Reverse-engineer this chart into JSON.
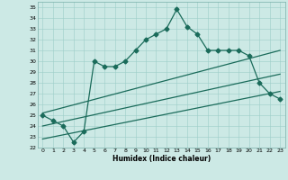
{
  "xlabel": "Humidex (Indice chaleur)",
  "xlim": [
    -0.5,
    23.5
  ],
  "ylim": [
    22,
    35.5
  ],
  "yticks": [
    22,
    23,
    24,
    25,
    26,
    27,
    28,
    29,
    30,
    31,
    32,
    33,
    34,
    35
  ],
  "xticks": [
    0,
    1,
    2,
    3,
    4,
    5,
    6,
    7,
    8,
    9,
    10,
    11,
    12,
    13,
    14,
    15,
    16,
    17,
    18,
    19,
    20,
    21,
    22,
    23
  ],
  "bg_color": "#cce9e5",
  "grid_color": "#9dcdc8",
  "line_color": "#1a6b5a",
  "main_series_x": [
    0,
    1,
    2,
    3,
    4,
    5,
    6,
    7,
    8,
    9,
    10,
    11,
    12,
    13,
    14,
    15,
    16,
    17,
    18,
    19,
    20,
    21,
    22,
    23
  ],
  "main_series_y": [
    25.0,
    24.5,
    24.0,
    22.5,
    23.5,
    30.0,
    29.5,
    29.5,
    30.0,
    31.0,
    32.0,
    32.5,
    33.0,
    34.8,
    33.2,
    32.5,
    31.0,
    31.0,
    31.0,
    31.0,
    30.5,
    28.0,
    27.0,
    26.5
  ],
  "upper_line_x": [
    0,
    23
  ],
  "upper_line_y": [
    25.2,
    31.0
  ],
  "lower_line_x": [
    0,
    23
  ],
  "lower_line_y": [
    22.8,
    27.2
  ],
  "mid_line_x": [
    0,
    23
  ],
  "mid_line_y": [
    24.0,
    28.8
  ],
  "marker_style": "D",
  "marker_size": 2.5,
  "line_width": 0.9
}
